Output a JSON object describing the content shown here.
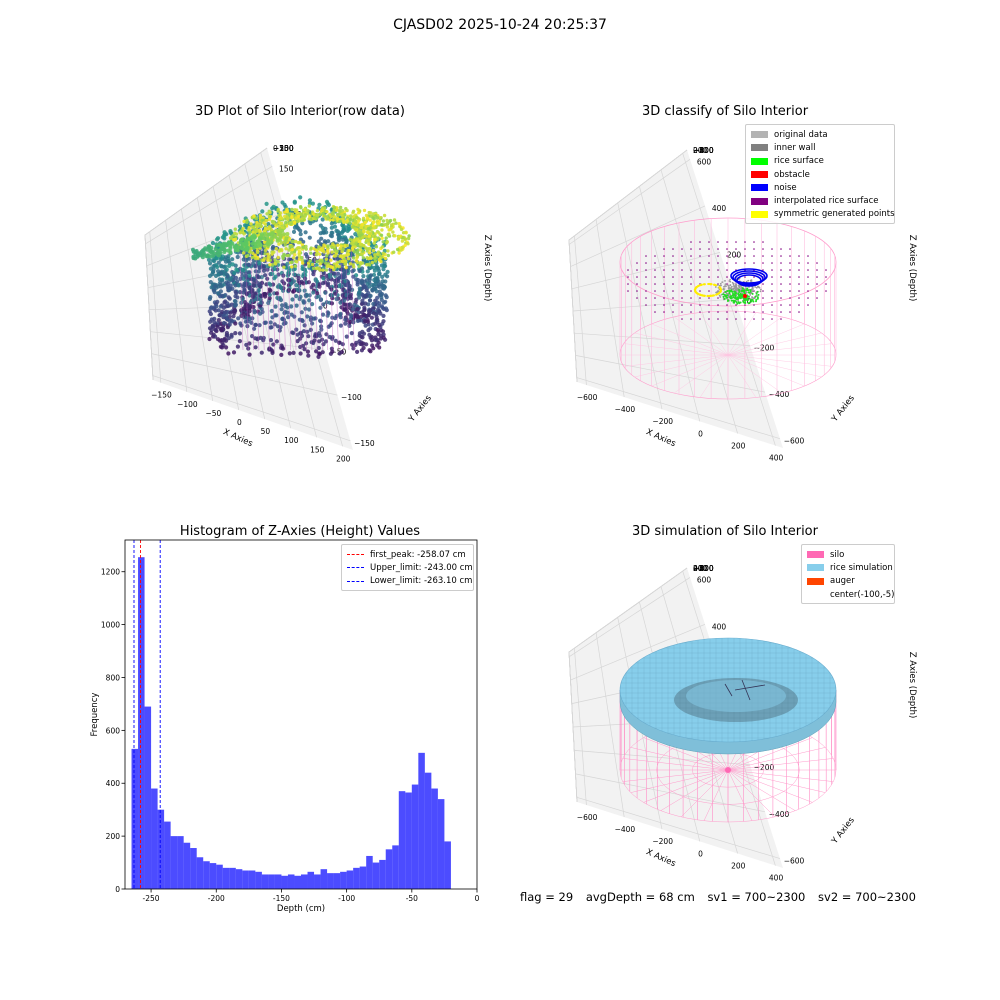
{
  "figure": {
    "suptitle": "CJASD02 2025-10-24 20:25:37",
    "footer": {
      "flag": "flag = 29",
      "avg_depth": "avgDepth = 68 cm",
      "sv1": "sv1 = 700~2300",
      "sv2": "sv2 = 700~2300"
    }
  },
  "chart_data": [
    {
      "type": "scatter3d",
      "title": "3D Plot of Silo Interior(row data)",
      "xlabel": "X Axies",
      "ylabel": "Y Axies",
      "zlabel": "Z Axies (Depth)",
      "x_ticks": [
        "−150",
        "−100",
        "−50",
        "0",
        "50",
        "100",
        "150",
        "200"
      ],
      "y_ticks": [
        "−150",
        "−100",
        "−50",
        "0",
        "50",
        "100",
        "150"
      ],
      "z_ticks": [
        "0",
        "−50",
        "−100",
        "−150",
        "−200",
        "−250"
      ],
      "xlim": [
        -180,
        220
      ],
      "ylim": [
        -160,
        170
      ],
      "zlim": [
        -280,
        0
      ],
      "colormap": "viridis",
      "grid": true
    },
    {
      "type": "scatter3d",
      "title": "3D classify of Silo Interior",
      "xlabel": "X Axies",
      "ylabel": "Y Axies",
      "zlabel": "Z Axies (Depth)",
      "x_ticks": [
        "−600",
        "−400",
        "−200",
        "0",
        "200",
        "400"
      ],
      "y_ticks": [
        "−600",
        "−400",
        "−200",
        "0",
        "200",
        "400",
        "600"
      ],
      "z_ticks": [
        "200",
        "0",
        "−200",
        "−400",
        "−600",
        "−800"
      ],
      "legend_position": "top-right",
      "legend": [
        {
          "label": "original data",
          "color": "#b3b3b3"
        },
        {
          "label": "inner wall",
          "color": "#808080"
        },
        {
          "label": "rice surface",
          "color": "#00ff00"
        },
        {
          "label": "obstacle",
          "color": "#ff0000"
        },
        {
          "label": "noise",
          "color": "#0000ff"
        },
        {
          "label": "interpolated rice surface",
          "color": "#800080"
        },
        {
          "label": "symmetric generated points",
          "color": "#ffff00"
        }
      ],
      "grid": true
    },
    {
      "type": "bar",
      "title": "Histogram of Z-Axies (Height) Values",
      "xlabel": "Depth (cm)",
      "ylabel": "Frequency",
      "xlim": [
        -270,
        0
      ],
      "ylim": [
        0,
        1320
      ],
      "x_ticks": [
        -250,
        -200,
        -150,
        -100,
        -50,
        0
      ],
      "y_ticks": [
        0,
        200,
        400,
        600,
        800,
        1000,
        1200
      ],
      "bin_start": -265,
      "bin_width": 5,
      "values": [
        530,
        1255,
        690,
        380,
        300,
        255,
        200,
        200,
        175,
        155,
        120,
        105,
        98,
        92,
        80,
        80,
        75,
        70,
        70,
        65,
        55,
        55,
        55,
        50,
        55,
        50,
        55,
        65,
        55,
        75,
        60,
        60,
        65,
        70,
        80,
        85,
        125,
        100,
        110,
        150,
        165,
        370,
        365,
        395,
        515,
        440,
        380,
        340,
        180
      ],
      "bar_color": "#0000ff",
      "bar_alpha": 0.7,
      "legend_position": "top-right",
      "vlines": [
        {
          "label": "first_peak: -258.07 cm",
          "x": -258.07,
          "color": "#ff0000"
        },
        {
          "label": "Upper_limit: -243.00 cm",
          "x": -243.0,
          "color": "#0000ff"
        },
        {
          "label": "Lower_limit: -263.10 cm",
          "x": -263.1,
          "color": "#0000ff"
        }
      ]
    },
    {
      "type": "surface3d",
      "title": "3D simulation of Silo Interior",
      "xlabel": "X Axies",
      "ylabel": "Y Axies",
      "zlabel": "Z Axies (Depth)",
      "x_ticks": [
        "−600",
        "−400",
        "−200",
        "0",
        "200",
        "400"
      ],
      "y_ticks": [
        "−600",
        "−400",
        "−200",
        "0",
        "200",
        "400",
        "600"
      ],
      "z_ticks": [
        "400",
        "200",
        "0",
        "−200",
        "−400",
        "−600",
        "−800"
      ],
      "legend_position": "top-right",
      "legend": [
        {
          "label": "silo",
          "color": "#ff69b4"
        },
        {
          "label": "rice simulation",
          "color": "#87ceeb"
        },
        {
          "label": "auger",
          "color": "#ff4500"
        },
        {
          "label": "center(-100,-5)",
          "color": ""
        }
      ],
      "grid": true
    }
  ]
}
